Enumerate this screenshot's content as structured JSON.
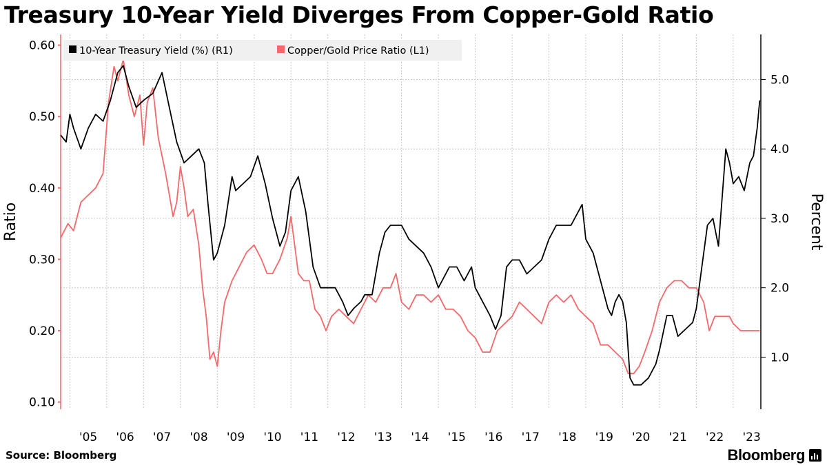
{
  "title": "Treasury 10-Year Yield Diverges From Copper-Gold Ratio",
  "source": "Source: Bloomberg",
  "brand": "Bloomberg",
  "brand_icon": "bar-chart-icon",
  "chart_data": {
    "type": "line",
    "legend_placement": "top-left",
    "grid": true,
    "x_ticks": [
      "'05",
      "'06",
      "'07",
      "'08",
      "'09",
      "'10",
      "'11",
      "'12",
      "'13",
      "'14",
      "'15",
      "'16",
      "'17",
      "'18",
      "'19",
      "'20",
      "'21",
      "'22",
      "'23"
    ],
    "x_range": [
      2004.75,
      2023.75
    ],
    "left_axis": {
      "label": "Ratio",
      "range": [
        0.09,
        0.615
      ],
      "ticks": [
        0.1,
        0.2,
        0.3,
        0.4,
        0.5,
        0.6
      ],
      "tick_labels": [
        "0.10",
        "0.20",
        "0.30",
        "0.40",
        "0.50",
        "0.60"
      ]
    },
    "right_axis": {
      "label": "Percent",
      "range": [
        0.25,
        5.65
      ],
      "ticks": [
        1.0,
        2.0,
        3.0,
        4.0,
        5.0
      ],
      "tick_labels": [
        "1.0",
        "2.0",
        "3.0",
        "4.0",
        "5.0"
      ]
    },
    "series": [
      {
        "name": "10-Year Treasury Yield (%) (R1)",
        "axis": "right",
        "color": "#000000",
        "x": [
          2004.75,
          2004.9,
          2005.0,
          2005.1,
          2005.3,
          2005.5,
          2005.7,
          2005.9,
          2006.1,
          2006.3,
          2006.45,
          2006.6,
          2006.8,
          2007.0,
          2007.25,
          2007.5,
          2007.7,
          2007.9,
          2008.1,
          2008.3,
          2008.5,
          2008.65,
          2008.75,
          2008.9,
          2009.0,
          2009.2,
          2009.4,
          2009.5,
          2009.7,
          2009.9,
          2010.1,
          2010.3,
          2010.5,
          2010.7,
          2010.85,
          2011.0,
          2011.2,
          2011.4,
          2011.6,
          2011.8,
          2012.0,
          2012.2,
          2012.4,
          2012.55,
          2012.7,
          2012.9,
          2013.0,
          2013.2,
          2013.4,
          2013.55,
          2013.7,
          2013.9,
          2014.0,
          2014.2,
          2014.4,
          2014.6,
          2014.8,
          2015.0,
          2015.1,
          2015.3,
          2015.5,
          2015.7,
          2015.9,
          2016.0,
          2016.2,
          2016.4,
          2016.55,
          2016.7,
          2016.85,
          2017.0,
          2017.2,
          2017.4,
          2017.6,
          2017.8,
          2018.0,
          2018.2,
          2018.4,
          2018.6,
          2018.8,
          2018.9,
          2019.0,
          2019.2,
          2019.4,
          2019.6,
          2019.7,
          2019.8,
          2019.9,
          2020.0,
          2020.1,
          2020.2,
          2020.3,
          2020.5,
          2020.7,
          2020.9,
          2021.0,
          2021.2,
          2021.35,
          2021.5,
          2021.7,
          2021.9,
          2022.0,
          2022.15,
          2022.3,
          2022.45,
          2022.6,
          2022.8,
          2022.9,
          2023.0,
          2023.15,
          2023.3,
          2023.45,
          2023.55,
          2023.65,
          2023.72
        ],
        "y": [
          4.2,
          4.1,
          4.5,
          4.3,
          4.0,
          4.3,
          4.5,
          4.4,
          4.7,
          5.1,
          5.2,
          4.9,
          4.6,
          4.7,
          4.8,
          5.1,
          4.6,
          4.1,
          3.8,
          3.9,
          4.0,
          3.8,
          3.2,
          2.4,
          2.5,
          2.9,
          3.6,
          3.4,
          3.5,
          3.6,
          3.9,
          3.5,
          3.0,
          2.6,
          2.8,
          3.4,
          3.6,
          3.1,
          2.3,
          2.0,
          2.0,
          2.0,
          1.8,
          1.6,
          1.7,
          1.8,
          1.9,
          1.9,
          2.5,
          2.8,
          2.9,
          2.9,
          2.9,
          2.7,
          2.6,
          2.5,
          2.3,
          2.0,
          2.1,
          2.3,
          2.3,
          2.1,
          2.3,
          2.0,
          1.8,
          1.6,
          1.4,
          1.6,
          2.3,
          2.4,
          2.4,
          2.2,
          2.3,
          2.4,
          2.7,
          2.9,
          2.9,
          2.9,
          3.1,
          3.2,
          2.7,
          2.5,
          2.1,
          1.7,
          1.6,
          1.8,
          1.9,
          1.8,
          1.5,
          0.7,
          0.6,
          0.6,
          0.7,
          0.9,
          1.1,
          1.6,
          1.6,
          1.3,
          1.4,
          1.5,
          1.7,
          2.3,
          2.9,
          3.0,
          2.6,
          4.0,
          3.8,
          3.5,
          3.6,
          3.4,
          3.8,
          3.9,
          4.3,
          4.7
        ]
      },
      {
        "name": "Copper/Gold Price Ratio (L1)",
        "axis": "left",
        "color": "#f56769",
        "x": [
          2004.75,
          2004.95,
          2005.1,
          2005.3,
          2005.5,
          2005.7,
          2005.9,
          2006.05,
          2006.2,
          2006.3,
          2006.45,
          2006.6,
          2006.75,
          2006.9,
          2007.0,
          2007.1,
          2007.25,
          2007.4,
          2007.6,
          2007.8,
          2007.9,
          2008.0,
          2008.1,
          2008.2,
          2008.35,
          2008.5,
          2008.6,
          2008.7,
          2008.8,
          2008.9,
          2009.0,
          2009.1,
          2009.2,
          2009.4,
          2009.6,
          2009.8,
          2010.0,
          2010.2,
          2010.35,
          2010.5,
          2010.7,
          2010.9,
          2011.0,
          2011.2,
          2011.35,
          2011.5,
          2011.65,
          2011.8,
          2011.95,
          2012.1,
          2012.3,
          2012.5,
          2012.7,
          2012.9,
          2013.1,
          2013.3,
          2013.5,
          2013.7,
          2013.85,
          2014.0,
          2014.2,
          2014.4,
          2014.6,
          2014.8,
          2015.0,
          2015.2,
          2015.4,
          2015.6,
          2015.8,
          2016.0,
          2016.2,
          2016.4,
          2016.6,
          2016.8,
          2017.0,
          2017.2,
          2017.4,
          2017.6,
          2017.8,
          2018.0,
          2018.2,
          2018.4,
          2018.6,
          2018.8,
          2019.0,
          2019.2,
          2019.4,
          2019.6,
          2019.8,
          2020.0,
          2020.15,
          2020.3,
          2020.45,
          2020.6,
          2020.8,
          2021.0,
          2021.2,
          2021.4,
          2021.6,
          2021.8,
          2022.0,
          2022.2,
          2022.35,
          2022.5,
          2022.7,
          2022.9,
          2023.0,
          2023.2,
          2023.4,
          2023.55,
          2023.72
        ],
        "y": [
          0.33,
          0.35,
          0.34,
          0.38,
          0.39,
          0.4,
          0.42,
          0.52,
          0.57,
          0.55,
          0.58,
          0.53,
          0.5,
          0.53,
          0.46,
          0.52,
          0.54,
          0.47,
          0.42,
          0.36,
          0.38,
          0.43,
          0.4,
          0.36,
          0.37,
          0.32,
          0.26,
          0.22,
          0.16,
          0.17,
          0.15,
          0.2,
          0.24,
          0.27,
          0.29,
          0.31,
          0.32,
          0.3,
          0.28,
          0.28,
          0.3,
          0.33,
          0.36,
          0.28,
          0.27,
          0.27,
          0.23,
          0.22,
          0.2,
          0.22,
          0.23,
          0.22,
          0.21,
          0.23,
          0.25,
          0.24,
          0.26,
          0.26,
          0.28,
          0.24,
          0.23,
          0.25,
          0.25,
          0.24,
          0.25,
          0.23,
          0.23,
          0.22,
          0.2,
          0.19,
          0.17,
          0.17,
          0.2,
          0.21,
          0.22,
          0.24,
          0.23,
          0.22,
          0.21,
          0.24,
          0.25,
          0.24,
          0.25,
          0.23,
          0.22,
          0.21,
          0.18,
          0.18,
          0.17,
          0.16,
          0.14,
          0.14,
          0.15,
          0.17,
          0.2,
          0.24,
          0.26,
          0.27,
          0.27,
          0.26,
          0.26,
          0.24,
          0.2,
          0.22,
          0.22,
          0.22,
          0.21,
          0.2,
          0.2,
          0.2,
          0.2
        ]
      }
    ]
  }
}
